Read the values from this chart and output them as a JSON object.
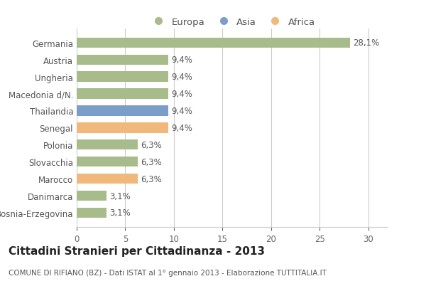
{
  "categories": [
    "Bosnia-Erzegovina",
    "Danimarca",
    "Marocco",
    "Slovacchia",
    "Polonia",
    "Senegal",
    "Thailandia",
    "Macedonia d/N.",
    "Ungheria",
    "Austria",
    "Germania"
  ],
  "values": [
    3.1,
    3.1,
    6.3,
    6.3,
    6.3,
    9.4,
    9.4,
    9.4,
    9.4,
    9.4,
    28.1
  ],
  "labels": [
    "3,1%",
    "3,1%",
    "6,3%",
    "6,3%",
    "6,3%",
    "9,4%",
    "9,4%",
    "9,4%",
    "9,4%",
    "9,4%",
    "28,1%"
  ],
  "colors": [
    "#a8bb8a",
    "#a8bb8a",
    "#f0b87a",
    "#a8bb8a",
    "#a8bb8a",
    "#f0b87a",
    "#7b9ec9",
    "#a8bb8a",
    "#a8bb8a",
    "#a8bb8a",
    "#a8bb8a"
  ],
  "legend_labels": [
    "Europa",
    "Asia",
    "Africa"
  ],
  "legend_colors": [
    "#a8bb8a",
    "#7b9ec9",
    "#f0b87a"
  ],
  "title": "Cittadini Stranieri per Cittadinanza - 2013",
  "subtitle": "COMUNE DI RIFIANO (BZ) - Dati ISTAT al 1° gennaio 2013 - Elaborazione TUTTITALIA.IT",
  "xlim": [
    0,
    32
  ],
  "xticks": [
    0,
    5,
    10,
    15,
    20,
    25,
    30
  ],
  "bar_height": 0.6,
  "background_color": "#ffffff",
  "grid_color": "#cccccc",
  "title_fontsize": 11,
  "subtitle_fontsize": 7.5,
  "label_fontsize": 8.5,
  "tick_fontsize": 8.5,
  "legend_fontsize": 9.5
}
